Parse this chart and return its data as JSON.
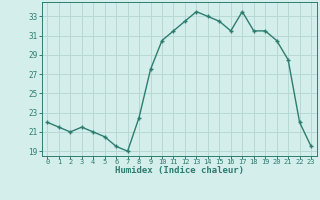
{
  "x": [
    0,
    1,
    2,
    3,
    4,
    5,
    6,
    7,
    8,
    9,
    10,
    11,
    12,
    13,
    14,
    15,
    16,
    17,
    18,
    19,
    20,
    21,
    22,
    23
  ],
  "y": [
    22,
    21.5,
    21,
    21.5,
    21,
    20.5,
    19.5,
    19,
    22.5,
    27.5,
    30.5,
    31.5,
    32.5,
    33.5,
    33,
    32.5,
    31.5,
    33.5,
    31.5,
    31.5,
    30.5,
    28.5,
    22,
    19.5
  ],
  "ylim": [
    18.5,
    34.5
  ],
  "yticks": [
    19,
    21,
    23,
    25,
    27,
    29,
    31,
    33
  ],
  "xticks": [
    0,
    1,
    2,
    3,
    4,
    5,
    6,
    7,
    8,
    9,
    10,
    11,
    12,
    13,
    14,
    15,
    16,
    17,
    18,
    19,
    20,
    21,
    22,
    23
  ],
  "xlabel": "Humidex (Indice chaleur)",
  "line_color": "#2d7d6f",
  "marker_color": "#2d7d6f",
  "bg_color": "#d4eeec",
  "grid_color": "#b8d8d5",
  "axis_color": "#2d7d6f",
  "tick_color": "#2d7d6f",
  "label_color": "#2d7d6f"
}
